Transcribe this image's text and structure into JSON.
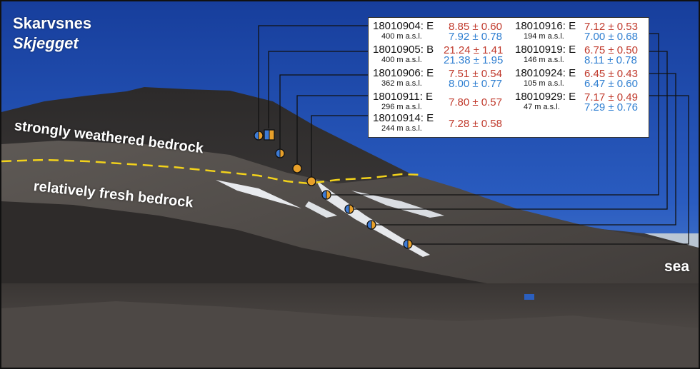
{
  "location": {
    "region": "Skarvsnes",
    "site": "Skjegget"
  },
  "labels": {
    "weathered": "strongly weathered bedrock",
    "fresh": "relatively fresh bedrock",
    "sea": "sea"
  },
  "colors": {
    "value_primary": "#c0392b",
    "value_secondary": "#2f7fd1",
    "boundary_line": "#f2d21b",
    "marker_orange": "#e8a02a",
    "marker_blue": "#3d7bd6",
    "sky": "#1f4aa8"
  },
  "samples": [
    {
      "id": "18010904: E",
      "altitude": "400 m a.s.l.",
      "value1": "8.85 ± 0.60",
      "value2": "7.92 ± 0.78",
      "marker": "half-circle"
    },
    {
      "id": "18010905: B",
      "altitude": "400 m a.s.l.",
      "value1": "21.24 ± 1.41",
      "value2": "21.38 ± 1.95",
      "marker": "half-square"
    },
    {
      "id": "18010906: E",
      "altitude": "362 m a.s.l.",
      "value1": "7.51 ± 0.54",
      "value2": "8.00 ± 0.77",
      "marker": "half-circle"
    },
    {
      "id": "18010911: E",
      "altitude": "296 m a.s.l.",
      "value1": "7.80 ± 0.57",
      "value2": "",
      "marker": "orange-circle"
    },
    {
      "id": "18010914: E",
      "altitude": "244 m a.s.l.",
      "value1": "7.28 ± 0.58",
      "value2": "",
      "marker": "orange-circle"
    },
    {
      "id": "18010916: E",
      "altitude": "194 m a.s.l.",
      "value1": "7.12 ± 0.53",
      "value2": "7.00 ± 0.68",
      "marker": "half-circle"
    },
    {
      "id": "18010919: E",
      "altitude": "146 m a.s.l.",
      "value1": "6.75 ± 0.50",
      "value2": "8.11 ± 0.78",
      "marker": "half-circle"
    },
    {
      "id": "18010924: E",
      "altitude": "105 m a.s.l.",
      "value1": "6.45 ± 0.43",
      "value2": "6.47 ± 0.60",
      "marker": "half-circle"
    },
    {
      "id": "18010929: E",
      "altitude": "47 m a.s.l.",
      "value1": "7.17 ± 0.49",
      "value2": "7.29 ± 0.76",
      "marker": "half-circle"
    }
  ]
}
